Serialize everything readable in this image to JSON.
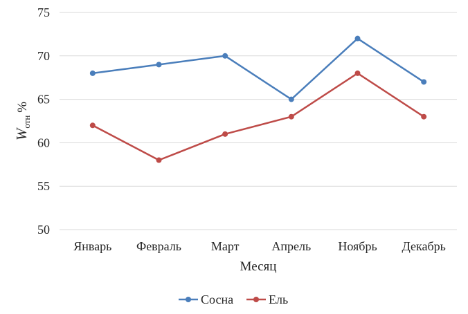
{
  "chart_data": {
    "type": "line",
    "title": "",
    "xlabel": "Месяц",
    "ylabel": {
      "main": "W",
      "subscript": "отн",
      "unit": "%"
    },
    "categories": [
      "Январь",
      "Февраль",
      "Март",
      "Апрель",
      "Ноябрь",
      "Декабрь"
    ],
    "ylim": [
      50,
      75
    ],
    "yticks": [
      50,
      55,
      60,
      65,
      70,
      75
    ],
    "grid": true,
    "legend_position": "bottom",
    "series": [
      {
        "name": "Сосна",
        "color": "#4a7ebb",
        "values": [
          68,
          69,
          70,
          65,
          72,
          67
        ]
      },
      {
        "name": "Ель",
        "color": "#be4b48",
        "values": [
          62,
          58,
          61,
          63,
          68,
          63
        ]
      }
    ]
  }
}
